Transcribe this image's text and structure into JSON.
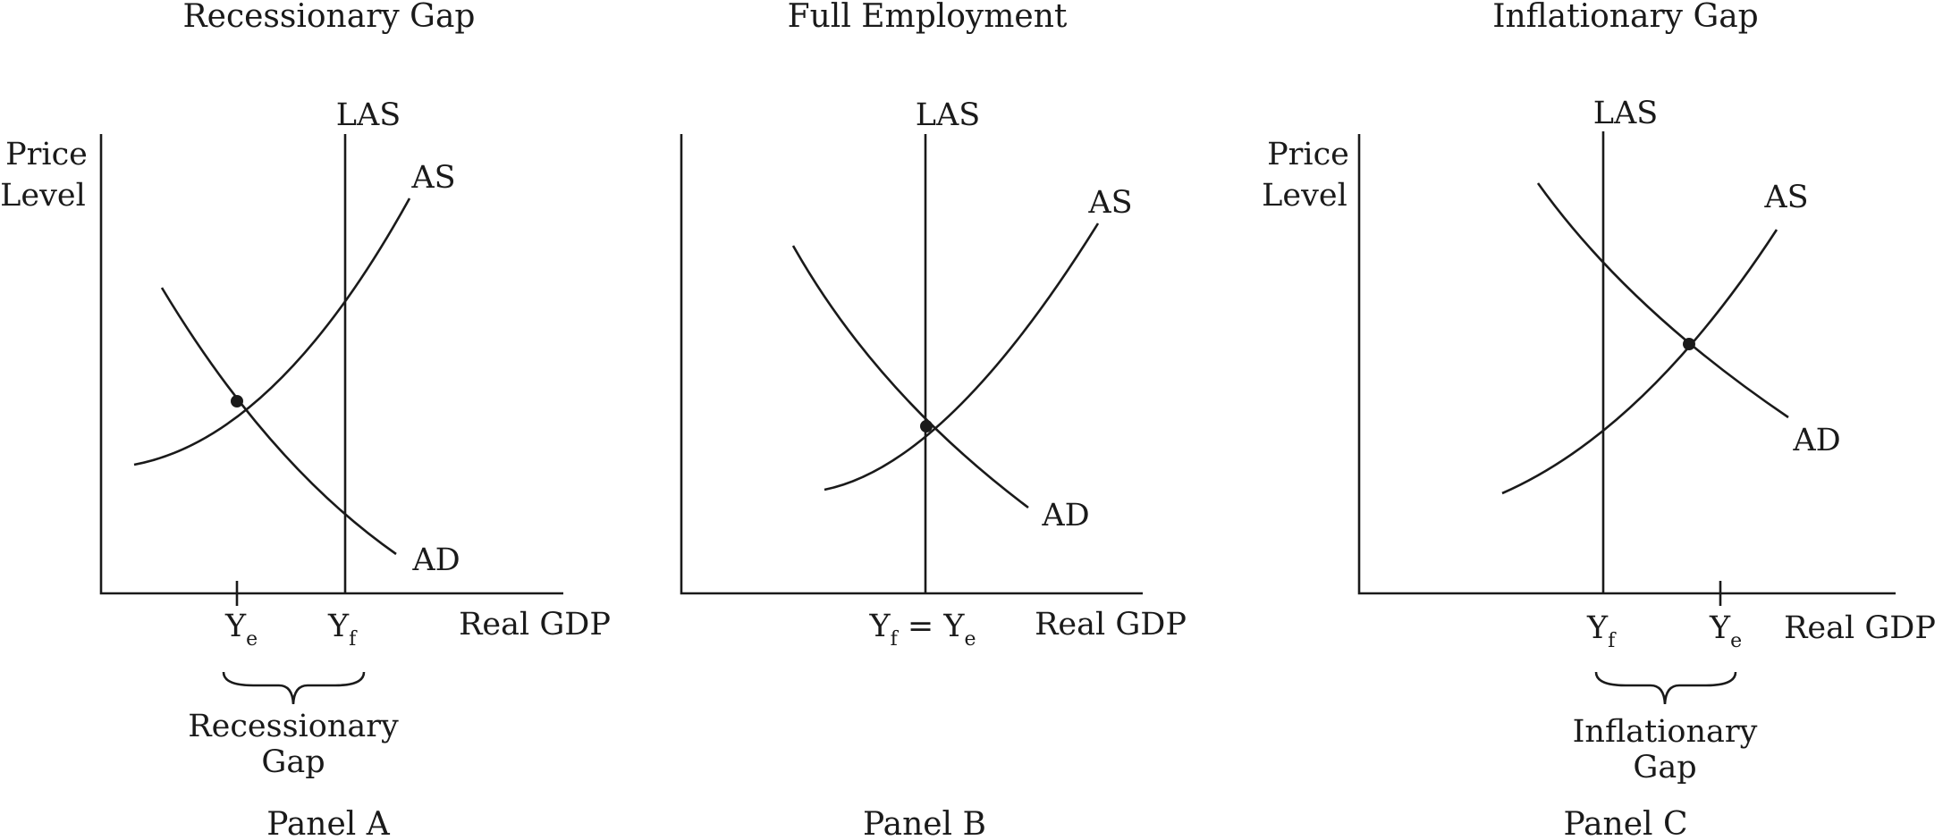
{
  "panels": [
    {
      "id": "a",
      "title": "Recessionary Gap",
      "y_axis_label_line1": "Price",
      "y_axis_label_line2": "Level",
      "x_axis_label": "Real GDP",
      "las_label": "LAS",
      "as_label": "AS",
      "ad_label": "AD",
      "tick_label_1": "Y",
      "tick_label_1_sub": "e",
      "tick_label_2": "Y",
      "tick_label_2_sub": "f",
      "gap_label_line1": "Recessionary",
      "gap_label_line2": "Gap",
      "panel_label": "Panel A"
    },
    {
      "id": "b",
      "title": "Full Employment",
      "y_axis_label_line1": "",
      "y_axis_label_line2": "",
      "x_axis_label": "Real GDP",
      "las_label": "LAS",
      "as_label": "AS",
      "ad_label": "AD",
      "tick_label_1": "Y",
      "tick_label_1_sub": "f",
      "tick_label_eq": " = Y",
      "tick_label_2_sub": "e",
      "panel_label": "Panel B"
    },
    {
      "id": "c",
      "title": "Inflationary Gap",
      "y_axis_label_line1": "Price",
      "y_axis_label_line2": "Level",
      "x_axis_label": "Real GDP",
      "las_label": "LAS",
      "as_label": "AS",
      "ad_label": "AD",
      "tick_label_1": "Y",
      "tick_label_1_sub": "f",
      "tick_label_2": "Y",
      "tick_label_2_sub": "e",
      "gap_label_line1": "Inflationary",
      "gap_label_line2": "Gap",
      "panel_label": "Panel C"
    }
  ]
}
